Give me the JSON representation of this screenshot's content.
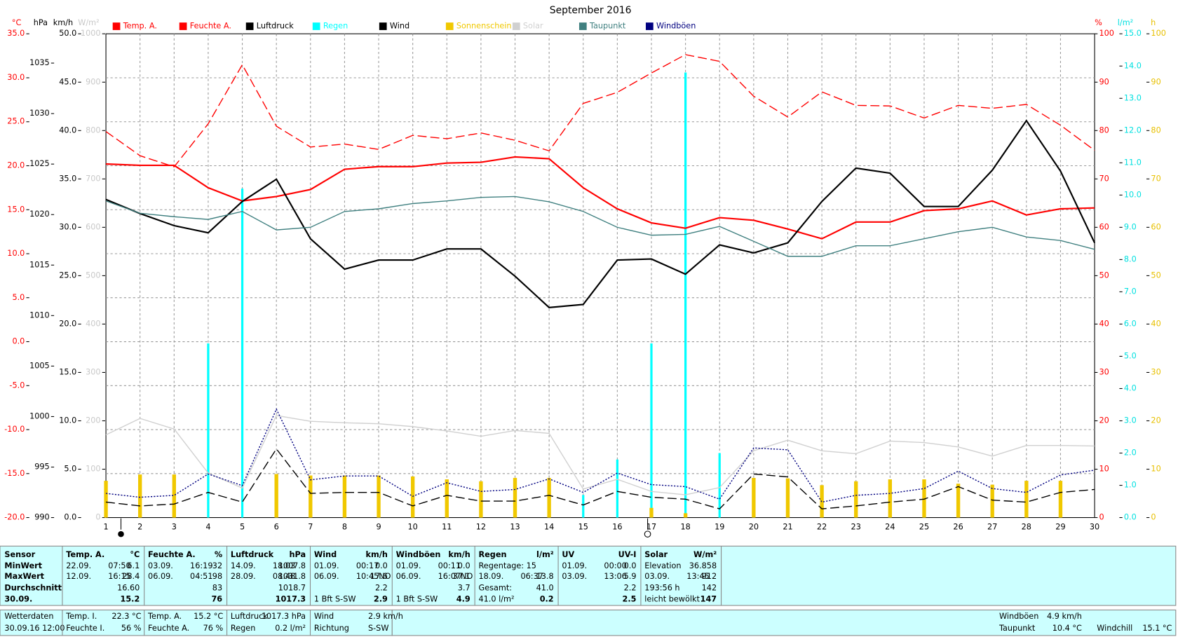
{
  "chart_data": {
    "type": "line",
    "title": "September 2016",
    "x": [
      1,
      2,
      3,
      4,
      5,
      6,
      7,
      8,
      9,
      10,
      11,
      12,
      13,
      14,
      15,
      16,
      17,
      18,
      19,
      20,
      21,
      22,
      23,
      24,
      25,
      26,
      27,
      28,
      29,
      30
    ],
    "xlim": [
      1,
      30
    ],
    "axes": [
      {
        "unit": "°C",
        "side": "left",
        "color": "#ff0000",
        "grid": true,
        "ylim": [
          -20,
          35
        ],
        "yticks": [
          {
            "value": -20,
            "label": "-20.0"
          },
          {
            "value": -15,
            "label": "-15.0"
          },
          {
            "value": -10,
            "label": "-10.0"
          },
          {
            "value": -5,
            "label": "-5.0"
          },
          {
            "value": 0,
            "label": "0.0"
          },
          {
            "value": 5,
            "label": "5.0"
          },
          {
            "value": 10,
            "label": "10.0"
          },
          {
            "value": 15,
            "label": "15.0"
          },
          {
            "value": 20,
            "label": "20.0"
          },
          {
            "value": 25,
            "label": "25.0"
          },
          {
            "value": 30,
            "label": "30.0"
          },
          {
            "value": 35,
            "label": "35.0"
          }
        ]
      },
      {
        "unit": "hPa",
        "side": "left",
        "color": "#000000",
        "ylim": [
          990,
          1037.9
        ],
        "yticks": [
          990,
          995,
          1000,
          1005,
          1010,
          1015,
          1020,
          1025,
          1030,
          1035
        ]
      },
      {
        "unit": "km/h",
        "side": "left",
        "color": "#000000",
        "ylim": [
          0,
          50
        ],
        "yticks": [
          {
            "value": 0,
            "label": "0.0"
          },
          {
            "value": 5,
            "label": "5.0"
          },
          {
            "value": 10,
            "label": "10.0"
          },
          {
            "value": 15,
            "label": "15.0"
          },
          {
            "value": 20,
            "label": "20.0"
          },
          {
            "value": 25,
            "label": "25.0"
          },
          {
            "value": 30,
            "label": "30.0"
          },
          {
            "value": 35,
            "label": "35.0"
          },
          {
            "value": 40,
            "label": "40.0"
          },
          {
            "value": 45,
            "label": "45.0"
          },
          {
            "value": 50,
            "label": "50.0"
          }
        ]
      },
      {
        "unit": "W/m²",
        "side": "left",
        "color": "#c8c8c8",
        "ylim": [
          0,
          1000
        ],
        "yticks": [
          0,
          100,
          200,
          300,
          400,
          500,
          600,
          700,
          800,
          900,
          1000
        ]
      },
      {
        "unit": "%",
        "side": "right",
        "color": "#ff0000",
        "ylim": [
          0,
          100
        ],
        "yticks": [
          0,
          10,
          20,
          30,
          40,
          50,
          60,
          70,
          80,
          90,
          100
        ]
      },
      {
        "unit": "l/m²",
        "side": "right",
        "color": "#00e0e0",
        "ylim": [
          0,
          15
        ],
        "yticks": [
          {
            "value": 0,
            "label": "0.0"
          },
          {
            "value": 1,
            "label": "1.0"
          },
          {
            "value": 2,
            "label": "2.0"
          },
          {
            "value": 3,
            "label": "3.0"
          },
          {
            "value": 4,
            "label": "4.0"
          },
          {
            "value": 5,
            "label": "5.0"
          },
          {
            "value": 6,
            "label": "6.0"
          },
          {
            "value": 7,
            "label": "7.0"
          },
          {
            "value": 8,
            "label": "8.0"
          },
          {
            "value": 9,
            "label": "9.0"
          },
          {
            "value": 10,
            "label": "10.0"
          },
          {
            "value": 11,
            "label": "11.0"
          },
          {
            "value": 12,
            "label": "12.0"
          },
          {
            "value": 13,
            "label": "13.0"
          },
          {
            "value": 14,
            "label": "14.0"
          },
          {
            "value": 15,
            "label": "15.0"
          }
        ]
      },
      {
        "unit": "h",
        "side": "right",
        "color": "#e8c000",
        "ylim": [
          0,
          100
        ],
        "yticks": [
          0,
          10,
          20,
          30,
          40,
          50,
          60,
          70,
          80,
          90,
          100
        ]
      }
    ],
    "series": [
      {
        "name": "Temp. A.",
        "color": "#ff0000",
        "axis": 0,
        "style": "solid",
        "values": [
          20.2,
          20.05,
          20.05,
          17.5,
          16.0,
          16.5,
          17.3,
          19.6,
          19.9,
          19.9,
          20.3,
          20.4,
          21.0,
          20.8,
          17.5,
          15.1,
          13.5,
          12.9,
          14.1,
          13.8,
          12.8,
          11.7,
          13.6,
          13.6,
          14.9,
          15.1,
          16.0,
          14.4,
          15.1,
          15.2
        ]
      },
      {
        "name": "Feuchte A.",
        "color": "#ff0000",
        "axis": 4,
        "style": "dashed",
        "values": [
          79.8,
          74.8,
          72.5,
          81.4,
          93.6,
          80.9,
          76.6,
          77.2,
          76.1,
          79.0,
          78.3,
          79.5,
          78.0,
          75.8,
          85.6,
          87.9,
          91.9,
          95.7,
          94.3,
          87.1,
          82.8,
          88.0,
          85.2,
          85.1,
          82.6,
          85.2,
          84.6,
          85.4,
          81.1,
          75.9
        ]
      },
      {
        "name": "Luftdruck",
        "color": "#000000",
        "axis": 1,
        "style": "solid",
        "values": [
          1021.5,
          1020.1,
          1018.9,
          1018.2,
          1021.3,
          1023.5,
          1017.6,
          1014.6,
          1015.5,
          1015.5,
          1016.6,
          1016.6,
          1013.9,
          1010.8,
          1011.1,
          1015.5,
          1015.6,
          1014.1,
          1017.0,
          1016.2,
          1017.2,
          1021.3,
          1024.6,
          1024.1,
          1020.8,
          1020.8,
          1024.4,
          1029.3,
          1024.3,
          1017.2
        ]
      },
      {
        "name": "Regen",
        "color": "#00ffff",
        "axis": 5,
        "style": "bar",
        "values": [
          0,
          0,
          0,
          5.4,
          10.2,
          0.2,
          0,
          0,
          0,
          0,
          0,
          0,
          0,
          0,
          0.7,
          1.8,
          5.4,
          13.8,
          2.0,
          0.4,
          0,
          0,
          0,
          0.2,
          0.2,
          0,
          0,
          0.2,
          0,
          0
        ]
      },
      {
        "name": "Wind",
        "color": "#000000",
        "axis": 2,
        "style": "dashed",
        "values": [
          1.6,
          1.2,
          1.4,
          2.6,
          1.6,
          7.1,
          2.5,
          2.6,
          2.6,
          1.2,
          2.3,
          1.7,
          1.7,
          2.3,
          1.3,
          2.7,
          2.1,
          1.9,
          0.9,
          4.5,
          4.2,
          0.9,
          1.2,
          1.6,
          1.9,
          3.2,
          1.8,
          1.6,
          2.6,
          2.9
        ]
      },
      {
        "name": "Sonnenschein",
        "color": "#f0c800",
        "axis": 6,
        "style": "bar",
        "values": [
          7.6,
          8.9,
          8.9,
          0,
          0,
          9.0,
          8.7,
          8.7,
          8.7,
          8.5,
          7.9,
          7.5,
          8.2,
          8.2,
          0,
          0,
          2.0,
          0.9,
          0,
          8.2,
          8.1,
          6.7,
          7.5,
          7.9,
          7.9,
          7.0,
          6.8,
          7.6,
          7.6,
          0
        ]
      },
      {
        "name": "Solar",
        "color": "#d0d0d0",
        "axis": 3,
        "style": "solid",
        "values": [
          171,
          205,
          183,
          92,
          61,
          211,
          199,
          196,
          194,
          188,
          179,
          168,
          180,
          174,
          59,
          79,
          54,
          47,
          62,
          138,
          160,
          138,
          132,
          158,
          155,
          146,
          127,
          149,
          149,
          148
        ]
      },
      {
        "name": "Taupunkt",
        "color": "#408080",
        "axis": 0,
        "style": "solid",
        "values": [
          16.0,
          14.6,
          14.2,
          13.9,
          14.8,
          12.7,
          13.0,
          14.8,
          15.1,
          15.7,
          16.0,
          16.4,
          16.5,
          15.9,
          14.8,
          13.0,
          12.1,
          12.2,
          13.1,
          11.4,
          9.7,
          9.7,
          10.9,
          10.9,
          11.7,
          12.5,
          13.0,
          11.9,
          11.5,
          10.5
        ]
      },
      {
        "name": "Windböen",
        "color": "#000080",
        "axis": 2,
        "style": "dotted",
        "values": [
          2.5,
          2.1,
          2.3,
          4.5,
          3.3,
          11.2,
          3.9,
          4.3,
          4.3,
          2.2,
          3.6,
          2.7,
          2.9,
          4.0,
          2.6,
          4.6,
          3.4,
          3.2,
          1.9,
          7.2,
          7.0,
          1.6,
          2.3,
          2.5,
          3.0,
          4.8,
          3.0,
          2.6,
          4.4,
          4.9
        ]
      }
    ]
  },
  "table": {
    "corner": "Sensor",
    "row_labels": [
      "MinWert",
      "MaxWert",
      "Durchschnitt",
      "30.09."
    ],
    "columns": [
      {
        "header": "Temp. A.",
        "unit": "°C",
        "rows": [
          {
            "left": [
              "22.09.",
              "07:50"
            ],
            "value": "6.1"
          },
          {
            "left": [
              "12.09.",
              "16:15"
            ],
            "value": "28.4"
          },
          {
            "value": "16.60"
          },
          {
            "value": "15.2"
          }
        ]
      },
      {
        "header": "Feuchte A.",
        "unit": "%",
        "rows": [
          {
            "left": [
              "03.09.",
              "16:19"
            ],
            "value": "32"
          },
          {
            "left": [
              "06.09.",
              "04:51"
            ],
            "value": "98"
          },
          {
            "value": "83"
          },
          {
            "value": "76"
          }
        ]
      },
      {
        "header": "Luftdruck",
        "unit": "hPa",
        "rows": [
          {
            "left": [
              "14.09.",
              "18:03"
            ],
            "value": "1007.8"
          },
          {
            "left": [
              "28.09.",
              "08:48"
            ],
            "value": "1031.8"
          },
          {
            "value": "1018.7"
          },
          {
            "value": "1017.3"
          }
        ]
      },
      {
        "header": "Wind",
        "unit": "km/h",
        "rows": [
          {
            "left": [
              "01.09.",
              "00:17"
            ],
            "value": "0.0"
          },
          {
            "left": [
              "06.09.",
              "10:45NO"
            ],
            "value": "17.6"
          },
          {
            "value": "2.2"
          },
          {
            "left": [
              "1 Bft S-SW"
            ],
            "value": "2.9"
          }
        ]
      },
      {
        "header": "Windböen",
        "unit": "km/h",
        "rows": [
          {
            "left": [
              "01.09.",
              "00:11"
            ],
            "value": "0.0"
          },
          {
            "left": [
              "06.09.",
              "16:07NO"
            ],
            "value": "37.1"
          },
          {
            "value": "3.7"
          },
          {
            "left": [
              "1 Bft S-SW"
            ],
            "value": "4.9"
          }
        ]
      },
      {
        "header": "Regen",
        "unit": "l/m²",
        "rows": [
          {
            "left": [
              "Regentage: 15"
            ]
          },
          {
            "left": [
              "18.09.",
              "06:37"
            ],
            "value": "13.8"
          },
          {
            "left": [
              "Gesamt:"
            ],
            "value": "41.0"
          },
          {
            "left": [
              "41.0 l/m²"
            ],
            "value": "0.2"
          }
        ]
      },
      {
        "header": "UV",
        "unit": "UV-I",
        "rows": [
          {
            "left": [
              "01.09.",
              "00:00"
            ],
            "value": "0.0"
          },
          {
            "left": [
              "03.09.",
              "13:06"
            ],
            "value": "5.9"
          },
          {
            "value": "2.2"
          },
          {
            "value": "2.5"
          }
        ]
      },
      {
        "header": "Solar",
        "unit": "W/m²",
        "rows": [
          {
            "left": [
              "Elevation"
            ],
            "value": "36.858"
          },
          {
            "left": [
              "03.09.",
              "13:45"
            ],
            "value": "912"
          },
          {
            "left": [
              "193:56 h"
            ],
            "value": "142"
          },
          {
            "left": [
              "leicht bewölkt"
            ],
            "value": "147"
          }
        ]
      }
    ]
  },
  "footer": {
    "title": "Wetterdaten",
    "timestamp": "30.09.16 12:00",
    "groups": [
      [
        {
          "label": "Temp. I.",
          "value": "22.3 °C"
        },
        {
          "label": "Feuchte I.",
          "value": "56 %"
        }
      ],
      [
        {
          "label": "Temp. A.",
          "value": "15.2 °C"
        },
        {
          "label": "Feuchte A.",
          "value": "76 %"
        }
      ],
      [
        {
          "label": "Luftdruck",
          "value": "1017.3 hPa"
        },
        {
          "label": "Regen",
          "value": "0.2 l/m²"
        }
      ],
      [
        {
          "label": "Wind",
          "value": "2.9 km/h"
        },
        {
          "label": "Richtung",
          "value": "S-SW"
        }
      ],
      [
        {
          "label": "Windböen",
          "value": "4.9 km/h"
        },
        {
          "label": "Taupunkt",
          "value": "10.4 °C"
        }
      ],
      [
        {
          "label": "Windchill",
          "value": "15.1 °C"
        }
      ]
    ]
  }
}
